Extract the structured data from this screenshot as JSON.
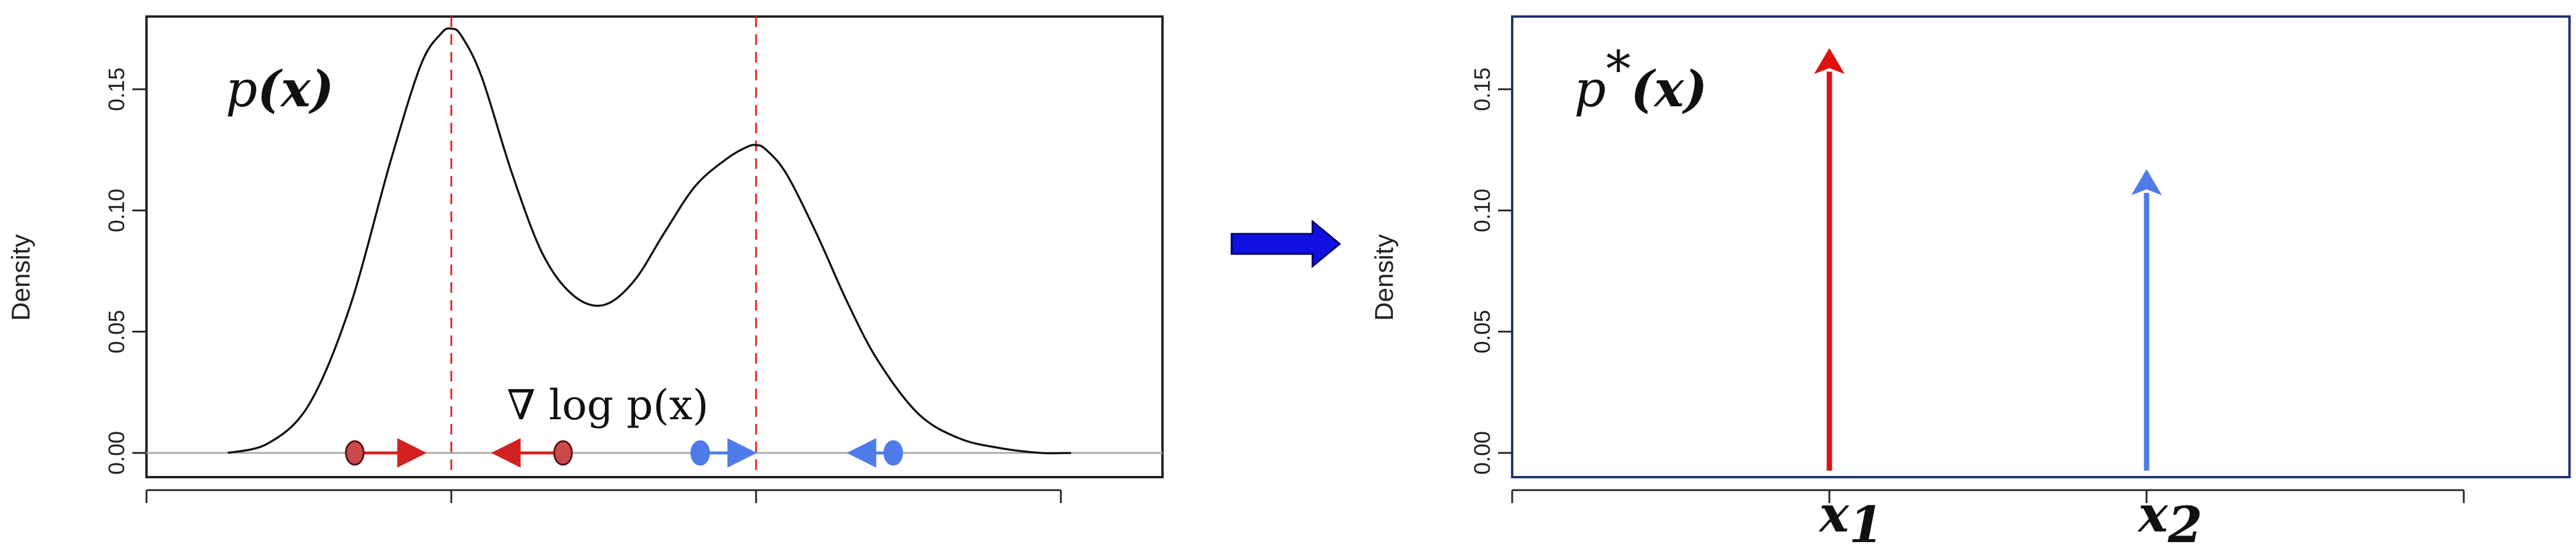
{
  "chart_data": [
    {
      "type": "line",
      "title": "p(x)",
      "ylabel": "Density",
      "xlabel": "",
      "ylim": [
        -0.01,
        0.18
      ],
      "yticks": [
        0.0,
        0.05,
        0.1,
        0.15
      ],
      "ytick_labels": [
        "0.00",
        "0.05",
        "0.10",
        "0.15"
      ],
      "xlim": [
        0,
        100
      ],
      "xticks": [
        0,
        30,
        60,
        90
      ],
      "grid": false,
      "series": [
        {
          "x": [
            8,
            12,
            16,
            20,
            24,
            27,
            29,
            30,
            31,
            33,
            36,
            39,
            42,
            45,
            48,
            51,
            54,
            57,
            59,
            60,
            61,
            63,
            66,
            69,
            72,
            76,
            80,
            84,
            88,
            91
          ],
          "y": [
            0.0,
            0.004,
            0.02,
            0.06,
            0.12,
            0.16,
            0.173,
            0.175,
            0.172,
            0.155,
            0.115,
            0.082,
            0.065,
            0.061,
            0.071,
            0.091,
            0.11,
            0.121,
            0.126,
            0.127,
            0.125,
            0.115,
            0.09,
            0.062,
            0.038,
            0.016,
            0.006,
            0.002,
            0.0,
            0.0
          ]
        }
      ],
      "modes": [
        30,
        60
      ],
      "annotation": "∇ log p(x)",
      "gradient_arrows": [
        {
          "start": 20.5,
          "end": 27,
          "color": "#d32020",
          "marker_fill": "#c94a4a"
        },
        {
          "start": 41,
          "end": 34.5,
          "color": "#d32020",
          "marker_fill": "#c94a4a"
        },
        {
          "start": 54.5,
          "end": 59.5,
          "color": "#4f7be8",
          "marker_fill": "#4f7be8"
        },
        {
          "start": 73.5,
          "end": 69.5,
          "color": "#4f7be8",
          "marker_fill": "#4f7be8"
        }
      ]
    },
    {
      "type": "bar",
      "title": "p*(x)",
      "ylabel": "Density",
      "xlabel": "",
      "ylim": [
        -0.01,
        0.18
      ],
      "yticks": [
        0.0,
        0.05,
        0.1,
        0.15
      ],
      "ytick_labels": [
        "0.00",
        "0.05",
        "0.10",
        "0.15"
      ],
      "xlim": [
        0,
        100
      ],
      "xticks": [
        0,
        30,
        60,
        90
      ],
      "categories": [
        "x1",
        "x2"
      ],
      "x": [
        30,
        60
      ],
      "values": [
        0.167,
        0.117
      ],
      "colors": [
        "#e01010",
        "#4f7be8"
      ]
    }
  ],
  "panel1": {
    "ylabel": "Density",
    "title_main": "p",
    "title_arg": "(x)",
    "annot": "∇ log p(x)"
  },
  "panel2": {
    "ylabel": "Density",
    "title_main": "p",
    "title_sup": "*",
    "title_arg": "(x)",
    "xlab1_main": "x",
    "xlab1_sub": "1",
    "xlab2_main": "x",
    "xlab2_sub": "2"
  },
  "transition": {
    "color": "#1010e0"
  }
}
